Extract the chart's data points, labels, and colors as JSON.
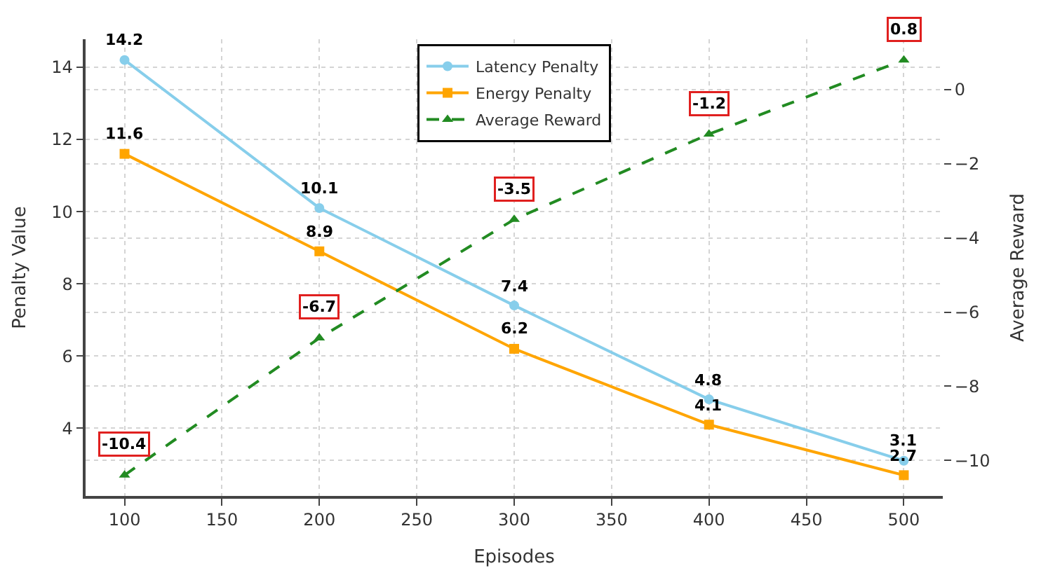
{
  "chart_data": {
    "type": "line",
    "xlabel": "Episodes",
    "ylabel": "Penalty Value",
    "y2label": "Average Reward",
    "x": [
      100,
      200,
      300,
      400,
      500
    ],
    "xlim": [
      80,
      520
    ],
    "xticks": [
      100,
      150,
      200,
      250,
      300,
      350,
      400,
      450,
      500
    ],
    "ylim": [
      2.125,
      14.775
    ],
    "yticks": [
      4,
      6,
      8,
      10,
      12,
      14
    ],
    "y2lim": [
      -10.96,
      1.36
    ],
    "y2ticks": [
      -10,
      -8,
      -6,
      -4,
      -2,
      0
    ],
    "grid": true,
    "legend": "top",
    "data_labels": true,
    "series": [
      {
        "name": "Latency Penalty",
        "color": "#87ceeb",
        "values": [
          14.2,
          10.1,
          7.4,
          4.8,
          3.1
        ],
        "marker": "circle",
        "line_style": "solid"
      },
      {
        "name": "Energy Penalty",
        "color": "#ffa500",
        "values": [
          11.6,
          8.9,
          6.2,
          4.1,
          2.7
        ],
        "marker": "square",
        "line_style": "solid"
      },
      {
        "name": "Average Reward",
        "color": "#228b22",
        "values": [
          -10.4,
          -6.7,
          -3.5,
          -1.2,
          0.8
        ],
        "marker": "triangle",
        "line_style": "dashed",
        "axis": "y2"
      }
    ]
  }
}
